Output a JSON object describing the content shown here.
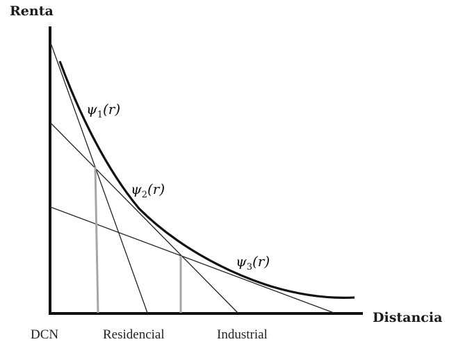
{
  "axes": {
    "y_label": "Renta",
    "x_label": "Distancia"
  },
  "zones": {
    "origin": "DCN",
    "first": "Residencial",
    "second": "Industrial"
  },
  "curves": [
    {
      "symbol": "ψ",
      "sub": "1",
      "arg": "(r)"
    },
    {
      "symbol": "ψ",
      "sub": "2",
      "arg": "(r)"
    },
    {
      "symbol": "ψ",
      "sub": "3",
      "arg": "(r)"
    }
  ],
  "colors": {
    "ink": "#111111",
    "boundary": "#a6a6a6"
  }
}
